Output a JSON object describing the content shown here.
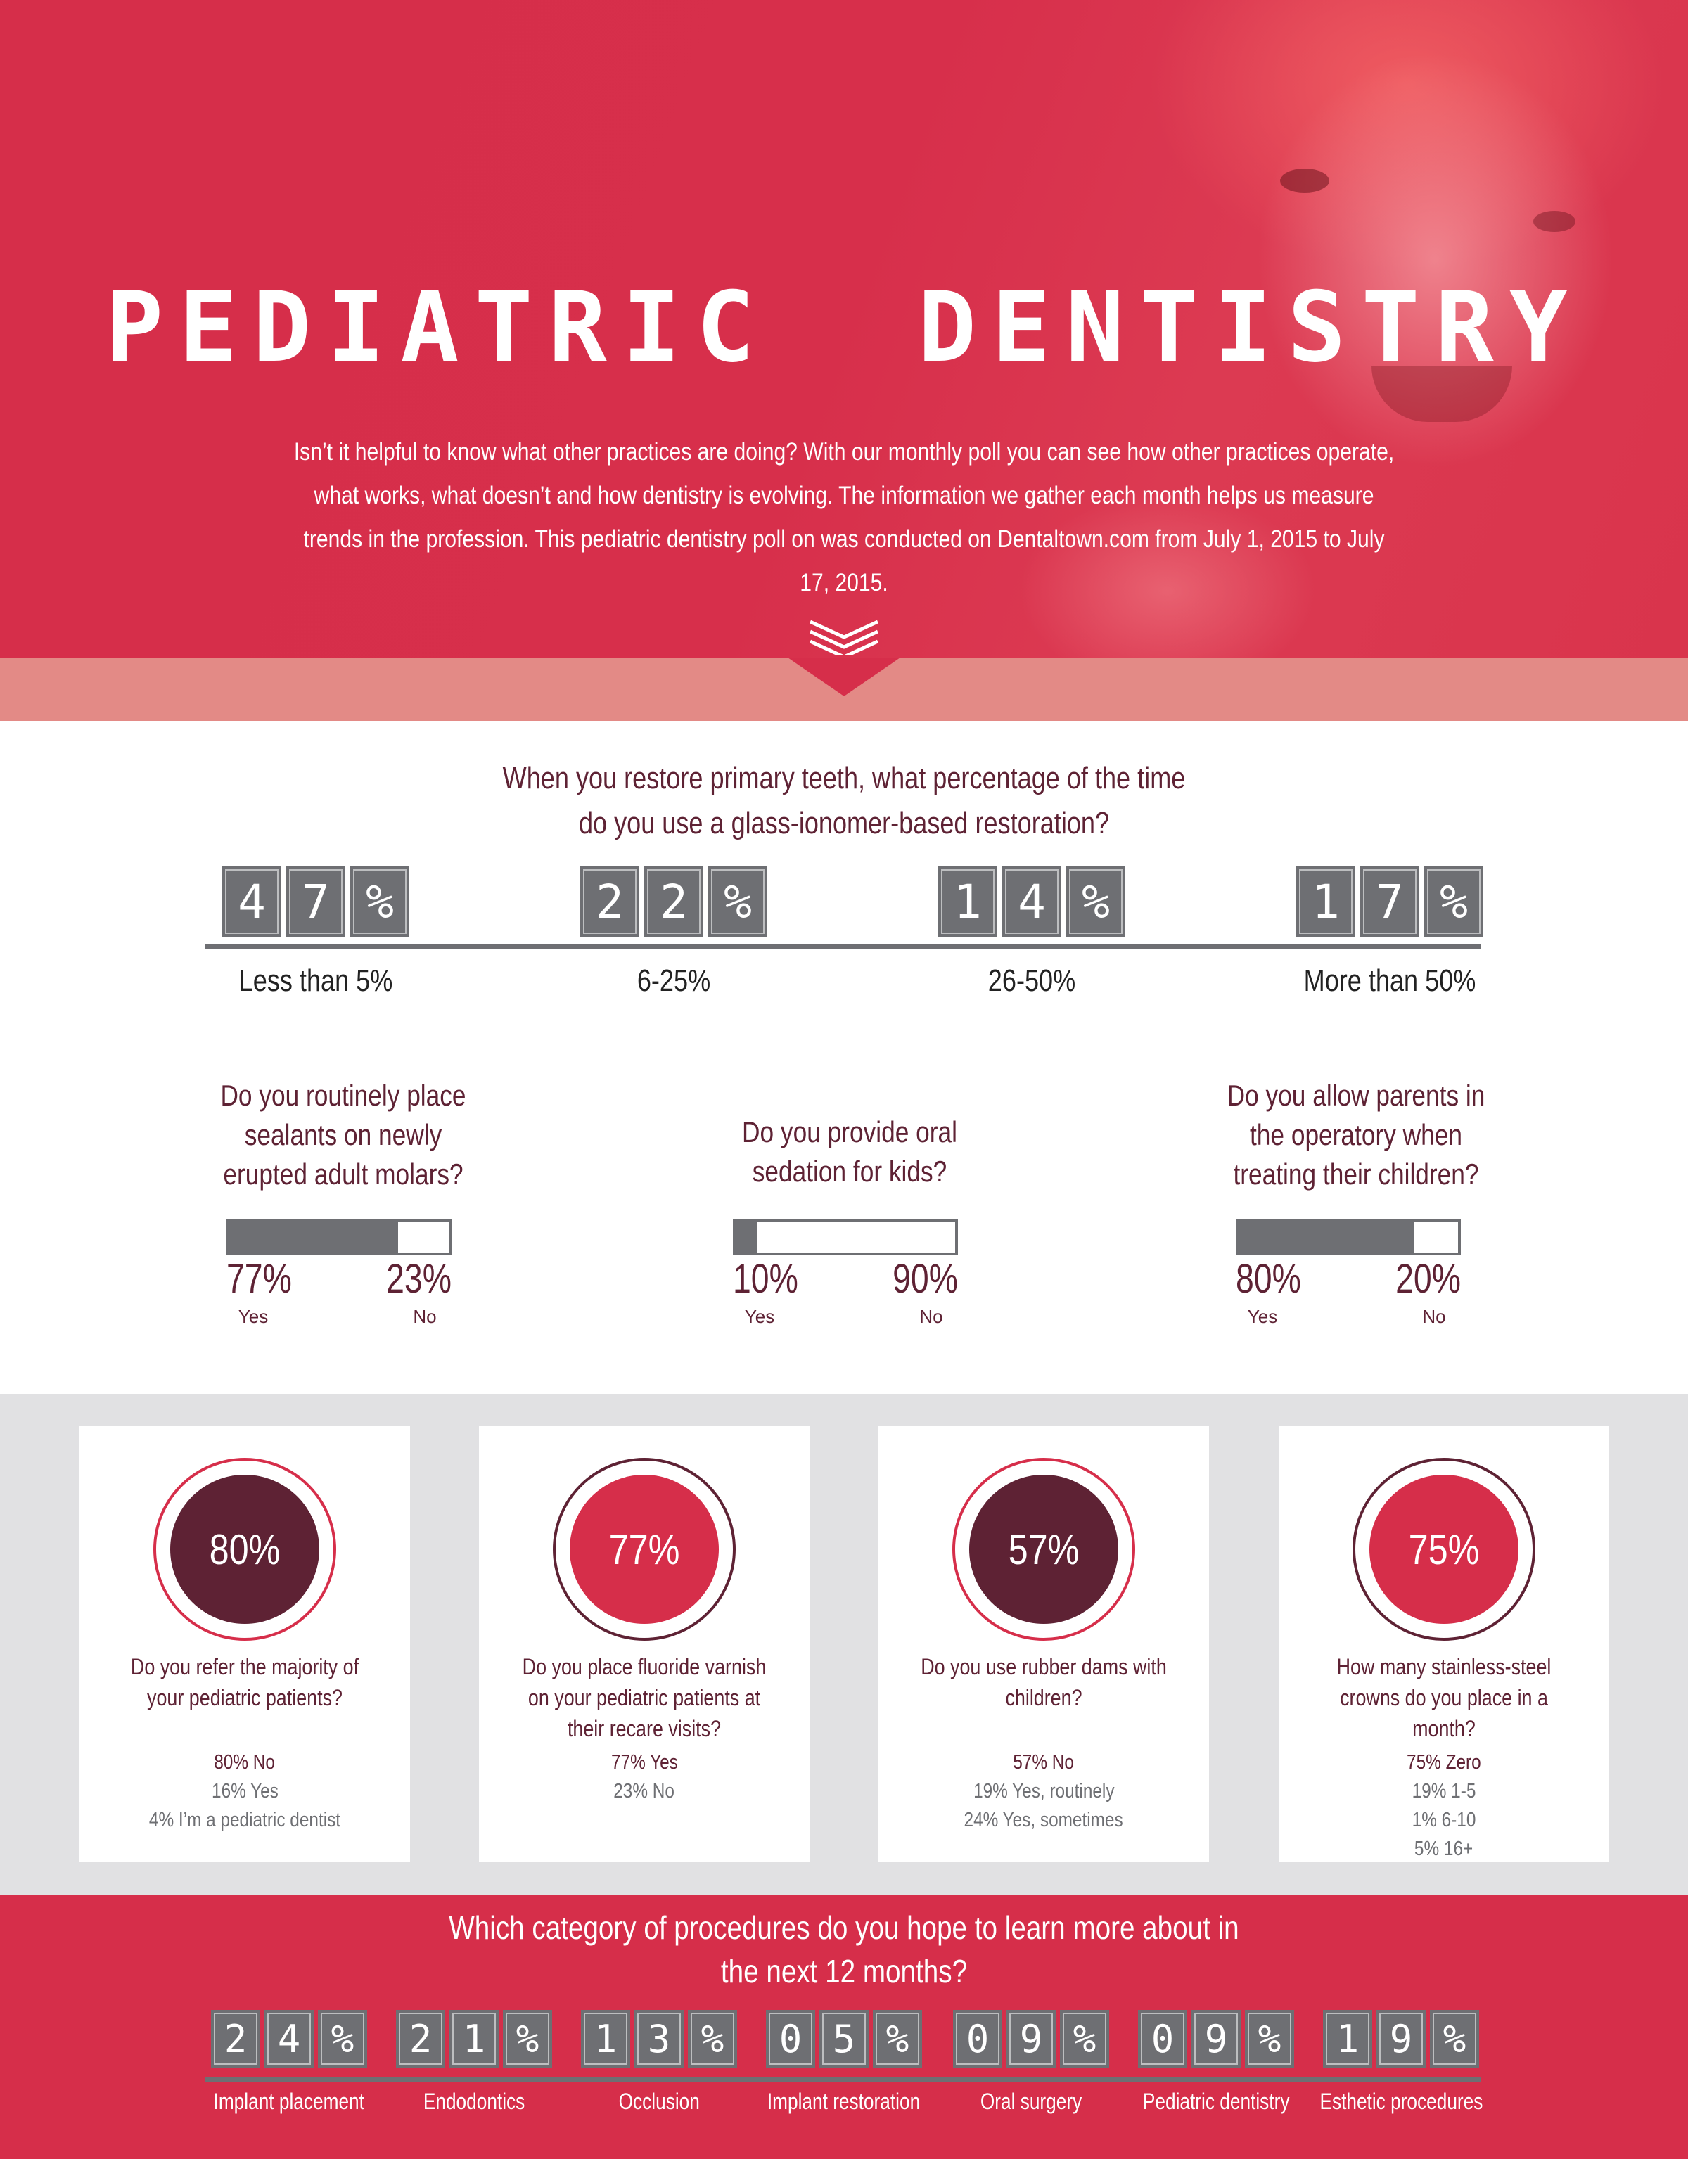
{
  "header": {
    "title": "PEDIATRIC  DENTISTRY",
    "intro": "Isn’t it helpful to know what other practices are doing? With our monthly poll you can see how other practices operate, what works, what doesn’t and how dentistry is evolving. The information we gather each month helps us measure trends in the profession. This pediatric dentistry poll on was conducted on Dentaltown.com from July 1, 2015 to July 17, 2015."
  },
  "colors": {
    "brand_red": "#d62e4a",
    "burgundy": "#5e2234",
    "grey": "#6e6f73",
    "light_grey": "#e1e1e3",
    "band_pink": "#e38a86"
  },
  "chart_data": [
    {
      "type": "bar",
      "title": "When you restore primary teeth, what percentage of the time do you use a glass-ionomer-based restoration?",
      "categories": [
        "Less than 5%",
        "6-25%",
        "26-50%",
        "More than 50%"
      ],
      "values": [
        47,
        22,
        14,
        17
      ],
      "display": [
        "47%",
        "22%",
        "14%",
        "17%"
      ]
    },
    {
      "type": "bar",
      "title": "Do you routinely place sealants on newly erupted adult molars?",
      "categories": [
        "Yes",
        "No"
      ],
      "values": [
        77,
        23
      ],
      "display": [
        "77%",
        "23%"
      ]
    },
    {
      "type": "bar",
      "title": "Do you provide oral sedation for kids?",
      "categories": [
        "Yes",
        "No"
      ],
      "values": [
        10,
        90
      ],
      "display": [
        "10%",
        "90%"
      ]
    },
    {
      "type": "bar",
      "title": "Do you allow parents in the operatory when treating their children?",
      "categories": [
        "Yes",
        "No"
      ],
      "values": [
        80,
        20
      ],
      "display": [
        "80%",
        "20%"
      ]
    },
    {
      "type": "table",
      "title": "Do you refer the majority of your pediatric patients?",
      "headline": "80%",
      "rows": [
        {
          "pct": "80%",
          "label": "No"
        },
        {
          "pct": "16%",
          "label": "Yes"
        },
        {
          "pct": "4%",
          "label": "I’m a pediatric dentist"
        }
      ]
    },
    {
      "type": "table",
      "title": "Do you place fluoride varnish on your pediatric patients at their recare visits?",
      "headline": "77%",
      "rows": [
        {
          "pct": "77%",
          "label": "Yes"
        },
        {
          "pct": "23%",
          "label": "No"
        }
      ]
    },
    {
      "type": "table",
      "title": "Do you use rubber dams with children?",
      "headline": "57%",
      "rows": [
        {
          "pct": "57%",
          "label": "No"
        },
        {
          "pct": "19%",
          "label": "Yes, routinely"
        },
        {
          "pct": "24%",
          "label": "Yes, sometimes"
        }
      ]
    },
    {
      "type": "table",
      "title": "How many stainless-steel crowns do you place in a month?",
      "headline": "75%",
      "rows": [
        {
          "pct": "75%",
          "label": "Zero"
        },
        {
          "pct": "19%",
          "label": "1-5"
        },
        {
          "pct": "1%",
          "label": "6-10"
        },
        {
          "pct": "5%",
          "label": "16+"
        }
      ]
    },
    {
      "type": "bar",
      "title": "Which category of procedures do you hope to learn more about in the next 12 months?",
      "categories": [
        "Implant placement",
        "Endodontics",
        "Occlusion",
        "Implant restoration",
        "Oral surgery",
        "Pediatric dentistry",
        "Esthetic procedures"
      ],
      "values": [
        24,
        21,
        13,
        5,
        9,
        9,
        19
      ],
      "display": [
        "24%",
        "21%",
        "13%",
        "05%",
        "09%",
        "09%",
        "19%"
      ]
    }
  ]
}
